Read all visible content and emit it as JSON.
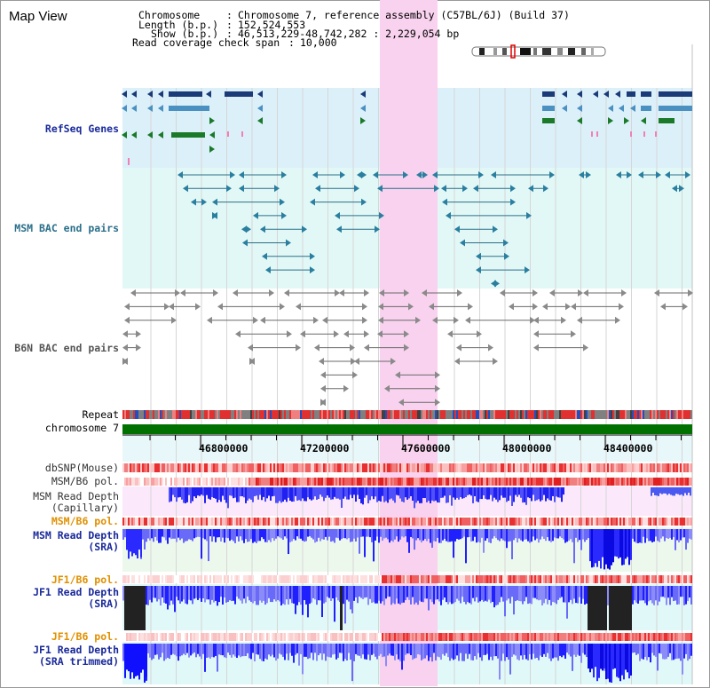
{
  "page": {
    "title": "Map View"
  },
  "header": {
    "chromosome_label": "Chromosome",
    "chromosome_value": "Chromosome 7, reference assembly (C57BL/6J) (Build 37)",
    "length_label": "Length (b.p.)",
    "length_value": "152,524,553",
    "show_label": "Show (b.p.)",
    "show_value": "46,513,229-48,742,282 : 2,229,054 bp",
    "coverage_label": "Read coverage check span",
    "coverage_value": "10,000"
  },
  "tracks": {
    "refseq_genes": "RefSeq Genes",
    "msm_bac": "MSM BAC end pairs",
    "b6n_bac": "B6N BAC end pairs",
    "repeat": "Repeat",
    "chromosome": "chromosome 7",
    "dbsnp": "dbSNP(Mouse)",
    "msm_b6_pol_1": "MSM/B6 pol.",
    "msm_depth_cap_1": "MSM Read Depth",
    "msm_depth_cap_2": "(Capillary)",
    "msm_b6_pol_2": "MSM/B6 pol.",
    "msm_depth_sra_1": "MSM Read Depth",
    "msm_depth_sra_2": "(SRA)",
    "jf1_b6_pol_1": "JF1/B6 pol.",
    "jf1_depth_sra_1": "JF1 Read Depth",
    "jf1_depth_sra_2": "(SRA)",
    "jf1_b6_pol_2": "JF1/B6 pol.",
    "jf1_depth_trim_1": "JF1 Read Depth",
    "jf1_depth_trim_2": "(SRA trimmed)"
  },
  "axis": {
    "ticks": [
      "46800000",
      "47200000",
      "47600000",
      "48000000",
      "48400000"
    ]
  },
  "colors": {
    "highlight": "#f8d8f0",
    "refseq_bg": "#dcf0fa",
    "msm_bg": "#e2f8f6",
    "gene_navy": "#1a3a78",
    "gene_steel": "#4a90c0",
    "gene_green": "#1a7a2a",
    "chromosome_bar": "#007000",
    "depth_blue": "#1a1aff"
  }
}
